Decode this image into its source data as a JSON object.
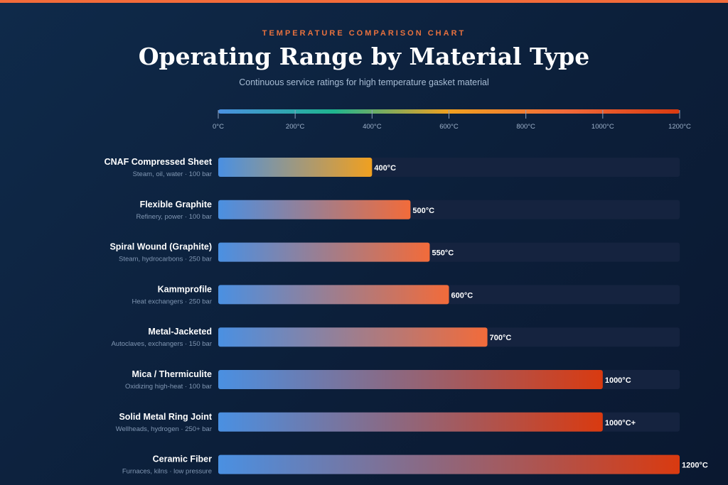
{
  "header": {
    "eyebrow": "TEMPERATURE COMPARISON CHART",
    "title": "Operating Range by Material Type",
    "subtitle": "Continuous service ratings for high temperature gasket material"
  },
  "colors": {
    "accent": "#f26b3a",
    "bar_start": "#4a90e2",
    "scale_gradient": [
      "#4a90e2",
      "#1fb58f",
      "#f0a020",
      "#f26b3a",
      "#d93a10"
    ],
    "track": "#15233f"
  },
  "chart_data": {
    "type": "bar",
    "orientation": "horizontal",
    "xlim": [
      0,
      1200
    ],
    "ticks": [
      0,
      200,
      400,
      600,
      800,
      1000,
      1200
    ],
    "tick_labels": [
      "0°C",
      "200°C",
      "400°C",
      "600°C",
      "800°C",
      "1000°C",
      "1200°C"
    ],
    "categories": [
      "CNAF Compressed Sheet",
      "Flexible Graphite",
      "Spiral Wound (Graphite)",
      "Kammprofile",
      "Metal-Jacketed",
      "Mica / Thermiculite",
      "Solid Metal Ring Joint",
      "Ceramic Fiber"
    ],
    "subtitles": [
      "Steam, oil, water · 100 bar",
      "Refinery, power · 100 bar",
      "Steam, hydrocarbons · 250 bar",
      "Heat exchangers · 250 bar",
      "Autoclaves, exchangers · 150 bar",
      "Oxidizing high-heat · 100 bar",
      "Wellheads, hydrogen · 250+ bar",
      "Furnaces, kilns · low pressure"
    ],
    "values": [
      400,
      500,
      550,
      600,
      700,
      1000,
      1000,
      1200
    ],
    "value_labels": [
      "400°C",
      "500°C",
      "550°C",
      "600°C",
      "700°C",
      "1000°C",
      "1000°C+",
      "1200°C"
    ],
    "bar_end_colors": [
      "#f0a020",
      "#f26b3a",
      "#f26b3a",
      "#f26b3a",
      "#f26b3a",
      "#d93a10",
      "#d93a10",
      "#d93a10"
    ]
  }
}
